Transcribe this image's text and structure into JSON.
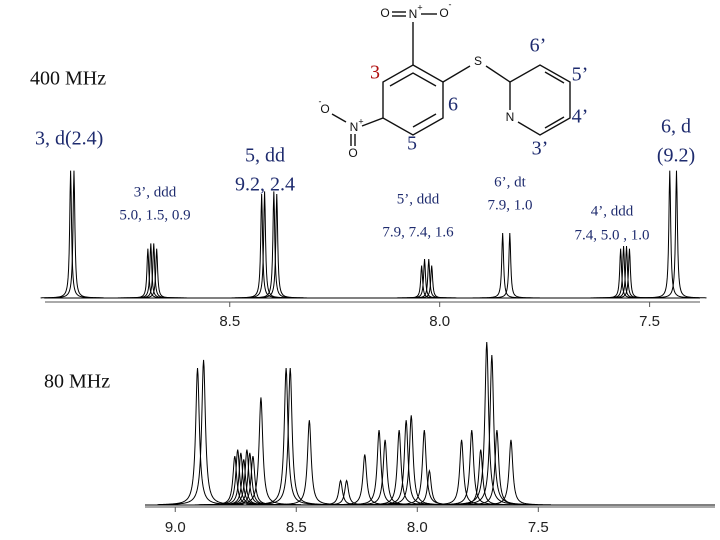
{
  "chart_data": [
    {
      "type": "spectrum",
      "title": "400 MHz",
      "x": [
        8.879,
        8.871,
        8.695,
        8.688,
        8.681,
        8.674,
        8.424,
        8.417,
        8.395,
        8.388,
        8.043,
        8.036,
        8.026,
        8.019,
        7.85,
        7.833,
        7.569,
        7.562,
        7.555,
        7.548,
        7.452,
        7.436
      ],
      "values": [
        98,
        98,
        38,
        42,
        42,
        38,
        80,
        82,
        82,
        80,
        25,
        30,
        30,
        25,
        50,
        50,
        38,
        40,
        40,
        38,
        98,
        98
      ],
      "xlim": [
        8.94,
        7.38
      ],
      "ylim": [
        0,
        100
      ],
      "xticks": [
        8.5,
        {
          "value": 8,
          "label": "8.0"
        },
        7.5
      ],
      "color": "#000000",
      "annotations": [
        [
          "3, d(2.4)"
        ],
        [
          "3’, ddd",
          "5.0, 1.5, 0.9"
        ],
        [
          "5, dd",
          "9.2, 2.4"
        ],
        [
          "5’, ddd",
          "7.9, 7.4, 1.6"
        ],
        [
          "6’, dt",
          "7.9, 1.0"
        ],
        [
          "4’, ddd",
          "7.4, 5.0 , 1.0"
        ],
        [
          "6, d",
          "(9.2)"
        ]
      ],
      "structure_labels": [
        "3",
        "6’",
        "5’",
        "6",
        "4’",
        "5",
        "3’"
      ],
      "atoms": [
        "O",
        "N",
        "O",
        "O",
        "N",
        "O",
        "S",
        "N"
      ],
      "charges": [
        "+",
        "-",
        "+",
        "-"
      ]
    },
    {
      "type": "spectrum",
      "title": "80 MHz",
      "x": [
        8.908,
        8.883,
        8.754,
        8.742,
        8.729,
        8.717,
        8.704,
        8.692,
        8.679,
        8.646,
        8.542,
        8.525,
        8.446,
        8.317,
        8.292,
        8.217,
        8.158,
        8.133,
        8.075,
        8.046,
        8.025,
        7.971,
        7.95,
        7.817,
        7.775,
        7.738,
        7.713,
        7.692,
        7.671,
        7.613
      ],
      "values": [
        84,
        89,
        30,
        34,
        32,
        28,
        34,
        32,
        30,
        66,
        84,
        84,
        52,
        15,
        15,
        31,
        46,
        40,
        46,
        52,
        55,
        46,
        21,
        40,
        46,
        34,
        100,
        92,
        46,
        40
      ],
      "xlim": [
        9.125,
        6.77
      ],
      "ylim": [
        0,
        100
      ],
      "xticks": [
        {
          "value": 9,
          "label": "9.0"
        },
        8.5,
        {
          "value": 8,
          "label": "8.0"
        },
        7.5
      ],
      "color": "#000000"
    }
  ]
}
